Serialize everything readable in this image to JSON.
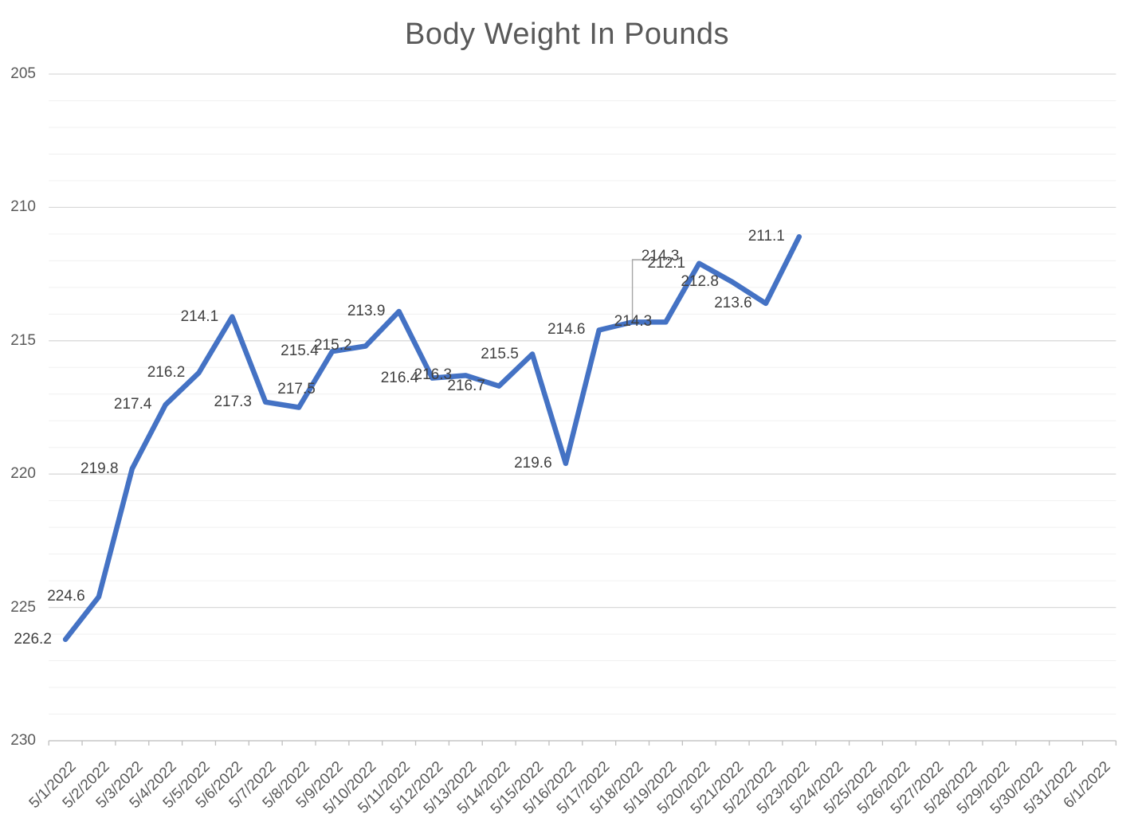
{
  "chart_data": {
    "type": "line",
    "title": "Body Weight In Pounds",
    "x_labels": [
      "5/1/2022",
      "5/2/2022",
      "5/3/2022",
      "5/4/2022",
      "5/5/2022",
      "5/6/2022",
      "5/7/2022",
      "5/8/2022",
      "5/9/2022",
      "5/10/2022",
      "5/11/2022",
      "5/12/2022",
      "5/13/2022",
      "5/14/2022",
      "5/15/2022",
      "5/16/2022",
      "5/17/2022",
      "5/18/2022",
      "5/19/2022",
      "5/20/2022",
      "5/21/2022",
      "5/22/2022",
      "5/23/2022",
      "5/24/2022",
      "5/25/2022",
      "5/26/2022",
      "5/27/2022",
      "5/28/2022",
      "5/29/2022",
      "5/30/2022",
      "5/31/2022",
      "6/1/2022"
    ],
    "series": [
      {
        "name": "Body Weight",
        "values": [
          226.2,
          224.6,
          219.8,
          217.4,
          216.2,
          214.1,
          217.3,
          217.5,
          215.4,
          215.2,
          213.9,
          216.4,
          216.3,
          216.7,
          215.5,
          219.6,
          214.6,
          214.3,
          214.3,
          212.1,
          212.8,
          213.6,
          211.1
        ]
      }
    ],
    "data_labels": [
      "226.2",
      "224.6",
      "219.8",
      "217.4",
      "216.2",
      "214.1",
      "217.3",
      "217.5",
      "215.4",
      "215.2",
      "213.9",
      "216.4",
      "216.3",
      "216.7",
      "215.5",
      "219.6",
      "214.6",
      "214.3",
      "214.3",
      "212.1",
      "212.8",
      "213.6",
      "211.1"
    ],
    "annotations": [
      {
        "text": "214.3",
        "type": "callout-with-leader-line",
        "point_index": 17
      }
    ],
    "y_axis": {
      "min": 205,
      "max": 230,
      "major_unit": 5,
      "minor_unit": 1,
      "reversed": true,
      "tick_labels": [
        "205",
        "210",
        "215",
        "220",
        "225",
        "230"
      ]
    },
    "x_axis": {
      "tick_marks": "outside",
      "label_rotation_deg": -45
    },
    "grid": {
      "major": true,
      "minor": true
    },
    "legend": "none",
    "colors": {
      "line": "#4472C4",
      "major_grid": "#D9D9D9",
      "minor_grid": "#F0F0F0",
      "axis_line": "#BFBFBF",
      "leader_line": "#A6A6A6",
      "data_label_text": "#404040",
      "axis_text": "#595959",
      "title_text": "#595959"
    }
  }
}
